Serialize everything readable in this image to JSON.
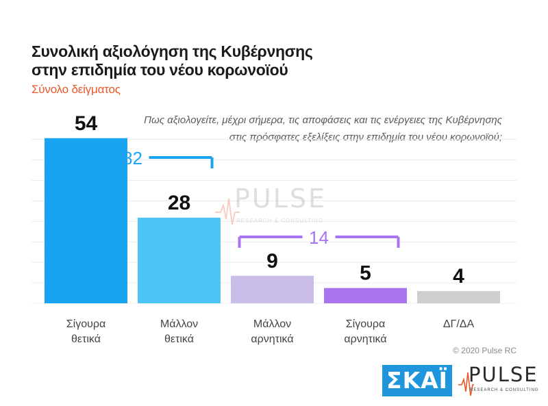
{
  "title": "Συνολική αξιολόγηση της Κυβέρνησης\nστην επιδημία του νέου κορωνοϊού",
  "subtitle": "Σύνολο δείγματος",
  "question": "Πως αξιολογείτε, μέχρι σήμερα, τις αποφάσεις και τις ενέργειες της Κυβέρνησης\nστις πρόσφατες εξελίξεις στην επιδημία του νέου κορωνοϊού;",
  "copyright": "© 2020 Pulse RC",
  "logos": {
    "skai": "ΣΚΑΪ",
    "pulse_word": "PULSE",
    "pulse_tagline": "RESEARCH & CONSULTING"
  },
  "chart_data": {
    "type": "bar",
    "categories": [
      "Σίγουρα\nθετικά",
      "Μάλλον\nθετικά",
      "Μάλλον\nαρνητικά",
      "Σίγουρα\nαρνητικά",
      "ΔΓ/ΔΑ"
    ],
    "values": [
      54,
      28,
      9,
      5,
      4
    ],
    "colors": [
      "#1aa3f0",
      "#4ec4f8",
      "#cbbdea",
      "#a874f0",
      "#cfcfcf"
    ],
    "ylim": [
      0,
      60
    ],
    "grid": true,
    "brackets": [
      {
        "label": "82",
        "from": 0,
        "to": 1,
        "color": "#1aa3f0"
      },
      {
        "label": "14",
        "from": 2,
        "to": 3,
        "color": "#a874f0"
      }
    ]
  }
}
